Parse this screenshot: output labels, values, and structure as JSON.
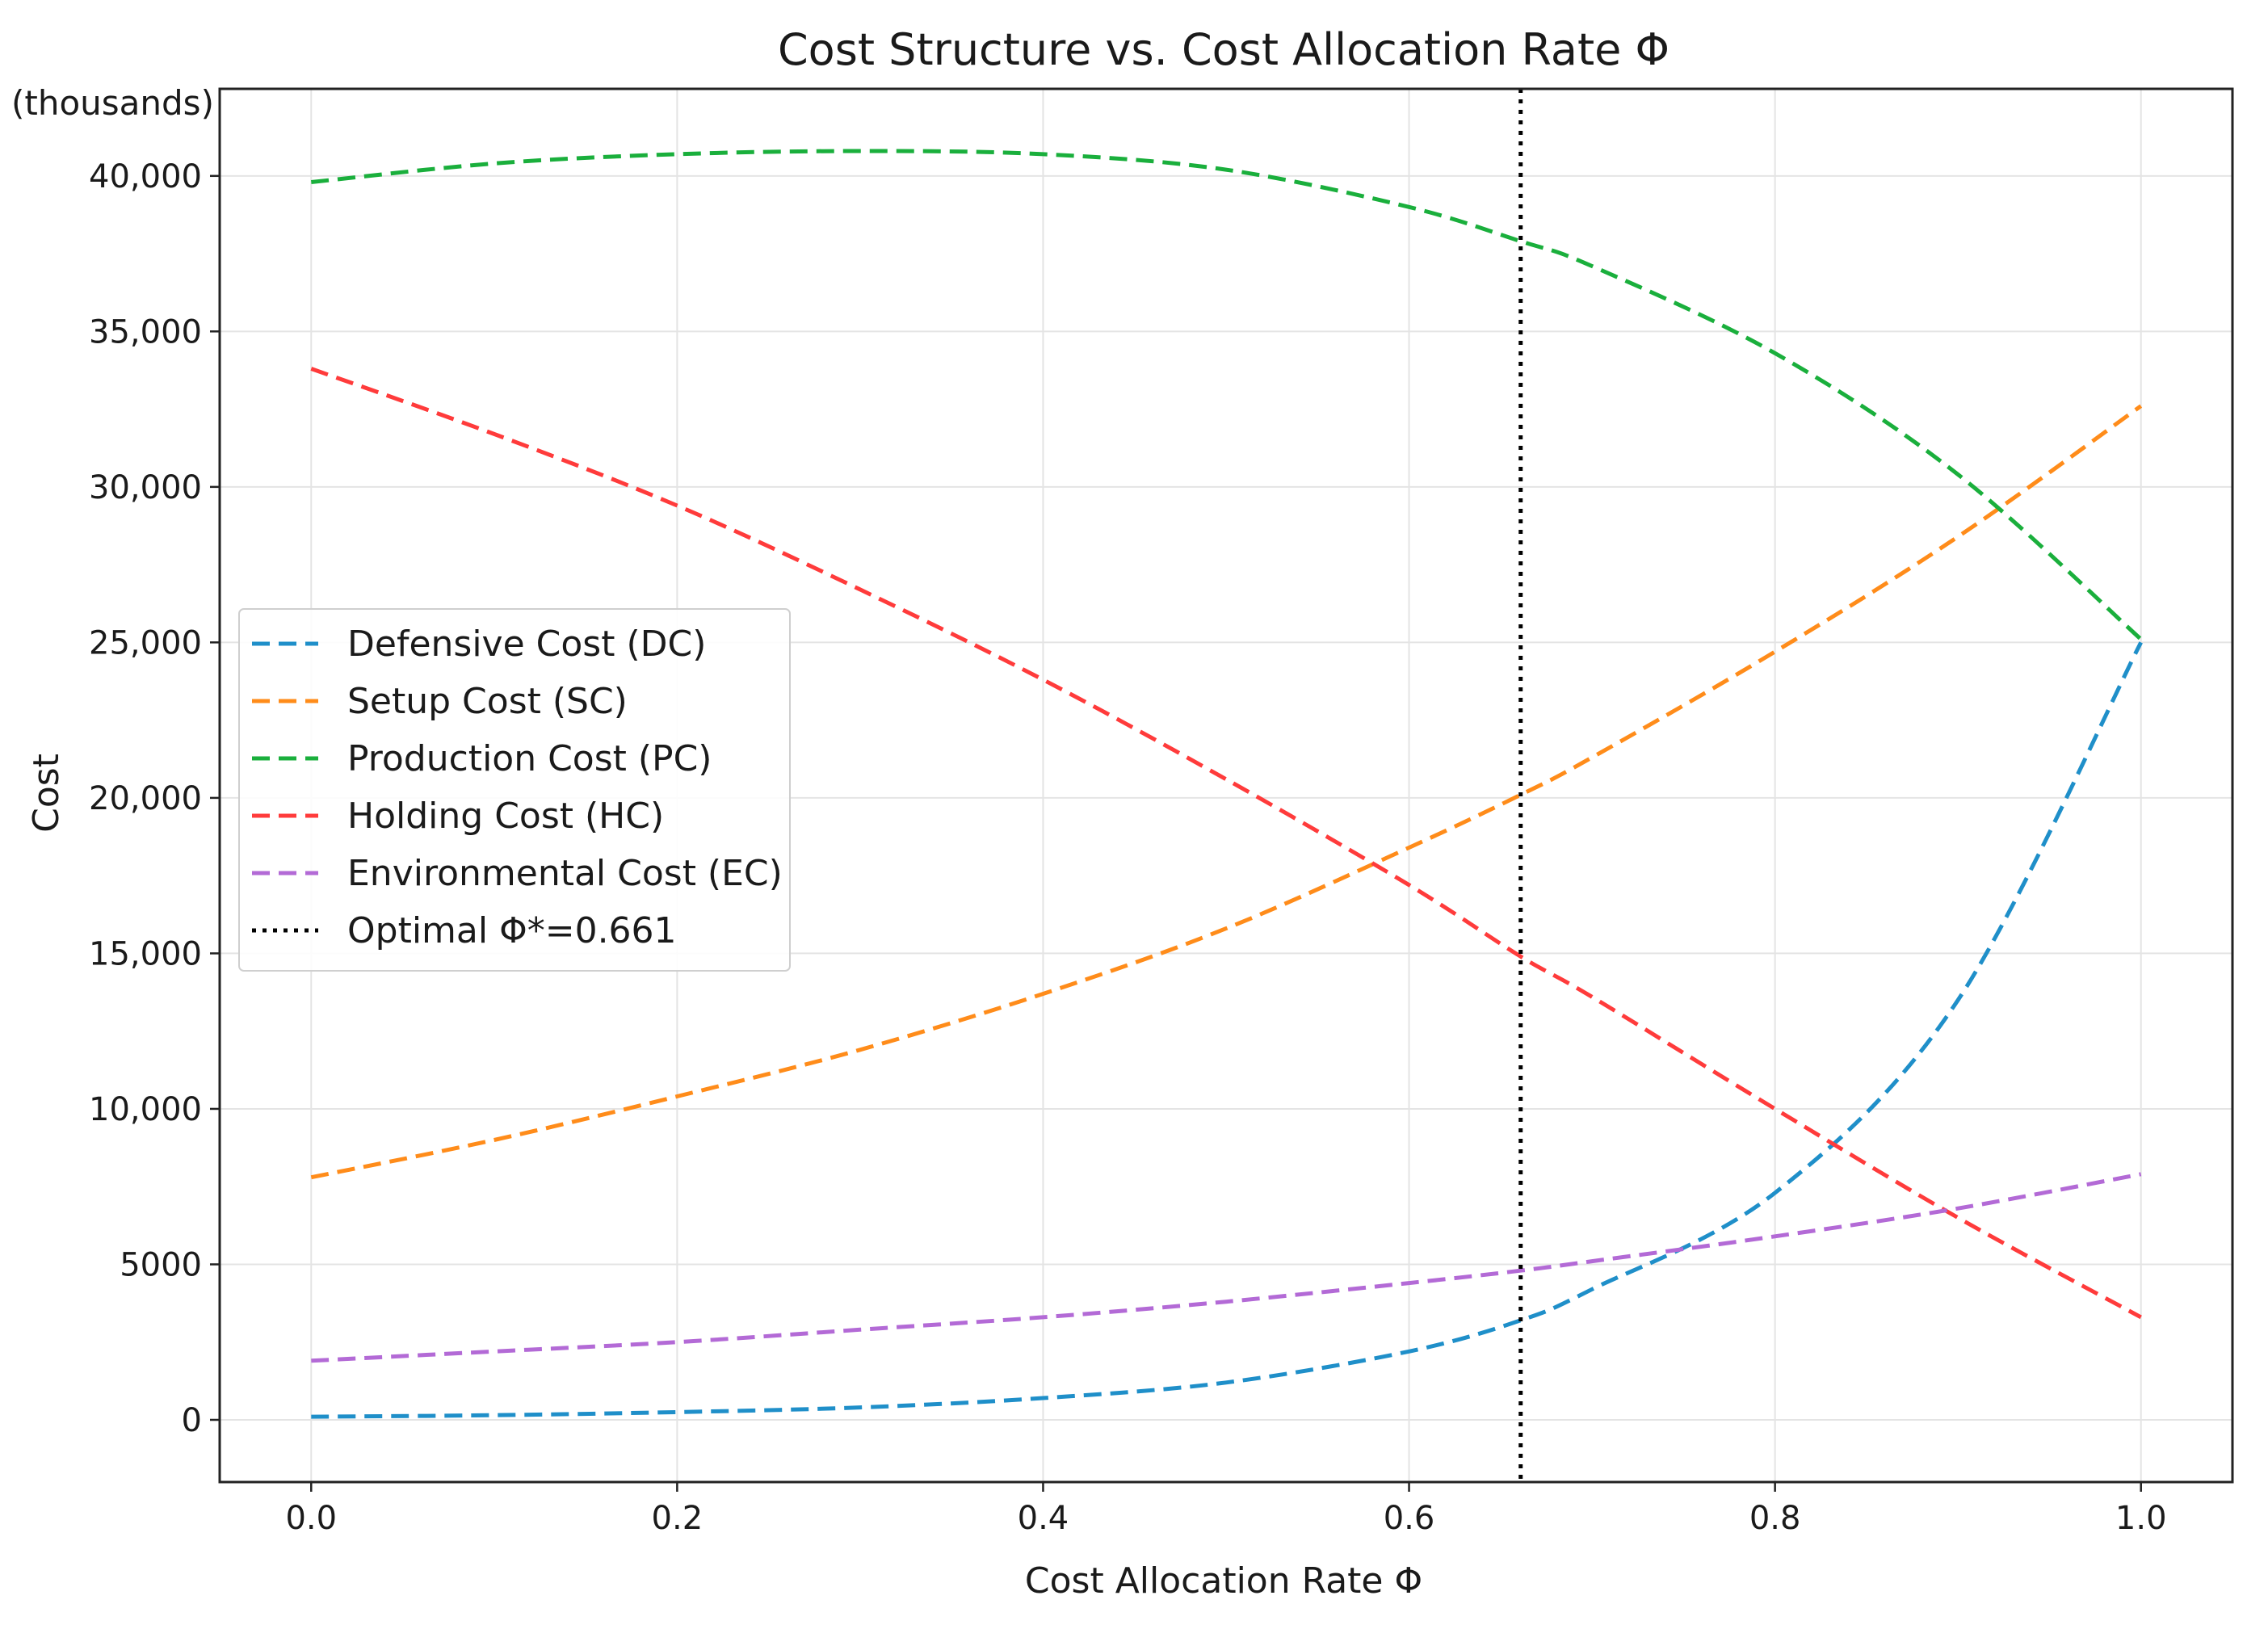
{
  "chart_data": {
    "type": "line",
    "title": "Cost Structure vs. Cost Allocation Rate Φ",
    "xlabel": "Cost Allocation Rate Φ",
    "ylabel": "Cost",
    "units_note": "(thousands)",
    "xlim": [
      -0.05,
      1.05
    ],
    "ylim": [
      -2000,
      42800
    ],
    "grid": true,
    "legend_position": "center-left",
    "x_ticks": [
      {
        "value": 0.0,
        "label": "0.0"
      },
      {
        "value": 0.2,
        "label": "0.2"
      },
      {
        "value": 0.4,
        "label": "0.4"
      },
      {
        "value": 0.6,
        "label": "0.6"
      },
      {
        "value": 0.8,
        "label": "0.8"
      },
      {
        "value": 1.0,
        "label": "1.0"
      }
    ],
    "y_ticks": [
      {
        "value": 0,
        "label": "0"
      },
      {
        "value": 5000,
        "label": "5000"
      },
      {
        "value": 10000,
        "label": "10,000"
      },
      {
        "value": 15000,
        "label": "15,000"
      },
      {
        "value": 20000,
        "label": "20,000"
      },
      {
        "value": 25000,
        "label": "25,000"
      },
      {
        "value": 30000,
        "label": "30,000"
      },
      {
        "value": 35000,
        "label": "35,000"
      },
      {
        "value": 40000,
        "label": "40,000"
      }
    ],
    "x": [
      0.0,
      0.1,
      0.2,
      0.3,
      0.4,
      0.5,
      0.6,
      0.661,
      0.7,
      0.8,
      0.9,
      1.0
    ],
    "series": [
      {
        "name": "Defensive Cost (DC)",
        "color": "#1f8fc9",
        "style": "dashed",
        "values": [
          100,
          150,
          250,
          400,
          700,
          1200,
          2200,
          3200,
          4200,
          7300,
          13500,
          25000
        ]
      },
      {
        "name": "Setup Cost (SC)",
        "color": "#ff8c1a",
        "style": "dashed",
        "values": [
          7800,
          9000,
          10400,
          11900,
          13700,
          15800,
          18400,
          20100,
          21300,
          24700,
          28400,
          32600
        ]
      },
      {
        "name": "Production Cost (PC)",
        "color": "#1aaf3c",
        "style": "dashed",
        "values": [
          39800,
          40400,
          40700,
          40800,
          40700,
          40200,
          39000,
          37900,
          37100,
          34300,
          30400,
          25100
        ]
      },
      {
        "name": "Holding Cost (HC)",
        "color": "#ff3b3b",
        "style": "dashed",
        "values": [
          33800,
          31700,
          29400,
          26700,
          23800,
          20600,
          17200,
          14900,
          13600,
          10000,
          6500,
          3300
        ]
      },
      {
        "name": "Environmental Cost (EC)",
        "color": "#b36ad6",
        "style": "dashed",
        "values": [
          1900,
          2200,
          2500,
          2900,
          3300,
          3800,
          4400,
          4800,
          5100,
          5900,
          6800,
          7900
        ]
      }
    ],
    "optimal": {
      "name": "Optimal Φ*=0.661",
      "x": 0.661,
      "color": "#000000",
      "style": "dotted"
    }
  }
}
